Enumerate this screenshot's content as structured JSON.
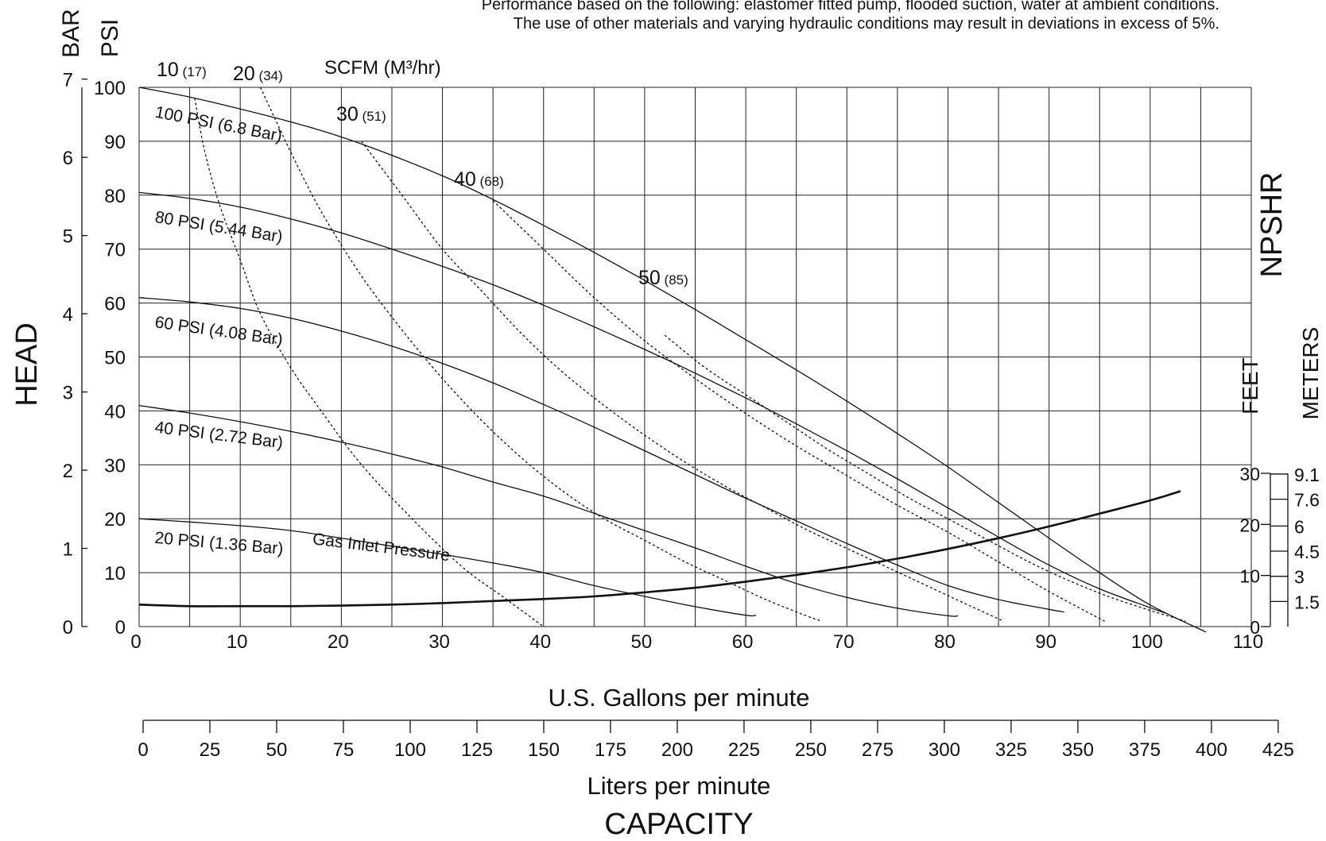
{
  "notes": [
    "Performance based on the following: elastomer fitted pump, flooded suction, water at ambient conditions.",
    "The use of other materials and varying hydraulic conditions may result in deviations in excess of 5%."
  ],
  "chart_data": {
    "type": "line",
    "title_left": "HEAD",
    "xlabel": "U.S. Gallons per minute",
    "xlabel_secondary": "Liters per minute",
    "xlabel_bottom": "CAPACITY",
    "scfm_title": "SCFM (M³/hr)",
    "left_units": [
      "BAR",
      "PSI"
    ],
    "right_title": "NPSHR",
    "right_units": [
      "FEET",
      "METERS"
    ],
    "xlim": [
      0,
      110
    ],
    "ylim": [
      0,
      100
    ],
    "x_ticks": [
      "0",
      "10",
      "20",
      "30",
      "40",
      "50",
      "60",
      "70",
      "80",
      "90",
      "100",
      "110"
    ],
    "psi_ticks": [
      "0",
      "10",
      "20",
      "30",
      "40",
      "50",
      "60",
      "70",
      "80",
      "90",
      "100"
    ],
    "bar_ticks": [
      "0",
      "1",
      "2",
      "3",
      "4",
      "5",
      "6",
      "7"
    ],
    "lpm_ticks": [
      "0",
      "25",
      "50",
      "75",
      "100",
      "125",
      "150",
      "175",
      "200",
      "225",
      "250",
      "275",
      "300",
      "325",
      "350",
      "375",
      "400",
      "425"
    ],
    "npsh_feet_ticks": [
      "0",
      "10",
      "20",
      "30"
    ],
    "npsh_meter_ticks": [
      "1.5",
      "3",
      "4.5",
      "6",
      "7.6",
      "9.1"
    ],
    "grid": true,
    "series": [
      {
        "name": "100 PSI (6.8 Bar)",
        "x": [
          0,
          5,
          10,
          15,
          20,
          25,
          30,
          35,
          40,
          45,
          50,
          55,
          60,
          65,
          70,
          75,
          80,
          85,
          90,
          95,
          100,
          105.5
        ],
        "y": [
          100,
          98.2,
          96,
          93.6,
          90.8,
          87.4,
          83.6,
          79.2,
          74.4,
          69.4,
          64.2,
          58.8,
          53.2,
          47.6,
          41.8,
          35.8,
          29.6,
          23,
          16.4,
          10,
          4,
          -1
        ]
      },
      {
        "name": "80 PSI (5.44 Bar)",
        "x": [
          0,
          5,
          10,
          15,
          20,
          25,
          30,
          35,
          40,
          45,
          50,
          55,
          60,
          65,
          70,
          75,
          80,
          85,
          90,
          95,
          100,
          101.5
        ],
        "y": [
          80.5,
          79.4,
          77.8,
          75.6,
          73,
          70,
          66.8,
          63.4,
          59.6,
          55.6,
          51.4,
          47,
          42.4,
          37.6,
          32.6,
          27.4,
          22,
          16.6,
          11.4,
          7,
          3.5,
          2.5
        ]
      },
      {
        "name": "60 PSI (4.08 Bar)",
        "x": [
          0,
          5,
          10,
          15,
          20,
          25,
          30,
          35,
          40,
          45,
          50,
          55,
          60,
          65,
          70,
          75,
          80,
          85,
          90,
          91.5
        ],
        "y": [
          61,
          60.2,
          59,
          57.2,
          54.8,
          52,
          48.8,
          45.2,
          41.2,
          37,
          32.6,
          28.2,
          23.8,
          19.6,
          15.4,
          11.4,
          7.6,
          5,
          3.2,
          2.7
        ]
      },
      {
        "name": "40 PSI (2.72 Bar)",
        "x": [
          0,
          5,
          10,
          15,
          20,
          25,
          30,
          35,
          40,
          45,
          50,
          55,
          60,
          65,
          70,
          75,
          80,
          81
        ],
        "y": [
          41,
          39.6,
          38,
          36.2,
          34.2,
          32,
          29.6,
          26.8,
          24.2,
          21,
          17.8,
          14.6,
          11.2,
          8,
          5.4,
          3.4,
          2,
          2
        ]
      },
      {
        "name": "20 PSI (1.36 Bar)",
        "x": [
          0,
          5,
          10,
          15,
          20,
          25,
          30,
          35,
          40,
          45,
          50,
          55,
          60,
          61
        ],
        "y": [
          20,
          19.4,
          18.7,
          17.8,
          16.4,
          14.9,
          13.4,
          11.8,
          10,
          7.6,
          5.6,
          3.7,
          2.1,
          2.1
        ]
      }
    ],
    "scfm_lines": [
      {
        "label": "10",
        "m3hr": "(17)",
        "x": [
          5.5,
          6.5,
          8,
          10,
          12,
          15,
          18,
          22,
          27,
          32,
          36,
          40
        ],
        "y": [
          98,
          88,
          78,
          68,
          58,
          48,
          40,
          30,
          20,
          11,
          5.5,
          0
        ]
      },
      {
        "label": "20",
        "m3hr": "(34)",
        "x": [
          12,
          15,
          18,
          22,
          26,
          30,
          34,
          38,
          42,
          46,
          50,
          54,
          58,
          62,
          66,
          67.5
        ],
        "y": [
          100,
          88,
          77,
          65,
          55,
          46,
          38,
          31,
          25,
          20,
          16,
          12,
          8.5,
          5,
          2,
          1
        ]
      },
      {
        "label": "30",
        "m3hr": "(51)",
        "x": [
          22,
          26,
          30,
          34,
          38,
          42,
          46,
          50,
          54,
          58,
          62,
          66,
          70,
          74,
          78,
          82,
          85.5
        ],
        "y": [
          90,
          80,
          70,
          62,
          54,
          47,
          41,
          35.5,
          30.5,
          26,
          22,
          18,
          14.5,
          11,
          7.5,
          4,
          1
        ]
      },
      {
        "label": "40",
        "m3hr": "(68)",
        "x": [
          35,
          40,
          45,
          50,
          55,
          60,
          65,
          70,
          75,
          80,
          85,
          90,
          95.5
        ],
        "y": [
          79,
          70,
          61,
          53,
          46,
          39.5,
          33.5,
          28,
          22.5,
          17.5,
          12,
          6.5,
          1
        ]
      },
      {
        "label": "50",
        "m3hr": "(85)",
        "x": [
          52,
          56,
          60,
          64,
          68,
          72,
          76,
          80,
          84,
          88,
          92,
          96,
          100,
          103.5
        ],
        "y": [
          54,
          48,
          43,
          38,
          33,
          28.5,
          24,
          20,
          16,
          12,
          8.5,
          5.5,
          3,
          1
        ]
      }
    ],
    "npshr": {
      "x": [
        0,
        5,
        10,
        15,
        20,
        25,
        30,
        35,
        40,
        45,
        50,
        55,
        60,
        65,
        70,
        75,
        80,
        85,
        90,
        95,
        100,
        103
      ],
      "y_feet": [
        4.3,
        4,
        4,
        4,
        4.1,
        4.3,
        4.6,
        5,
        5.4,
        5.9,
        6.7,
        7.6,
        8.8,
        10.1,
        11.6,
        13.3,
        15.2,
        17.3,
        19.6,
        22.1,
        24.7,
        26.5
      ]
    },
    "labels": {
      "gas_inlet": "Gas Inlet Pressure"
    }
  }
}
